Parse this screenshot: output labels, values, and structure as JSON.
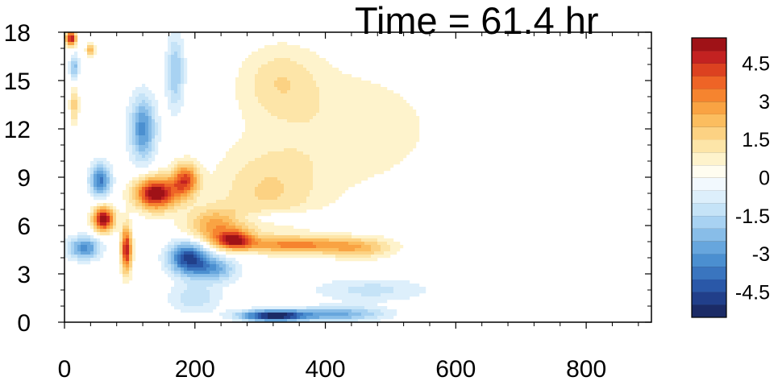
{
  "chart_data": {
    "type": "heatmap",
    "title": "Time = 61.4 hr",
    "xlabel": "",
    "ylabel": "",
    "xlim": [
      0,
      900
    ],
    "ylim": [
      0,
      18
    ],
    "x_ticks": [
      0,
      200,
      400,
      600,
      800
    ],
    "x_tick_labels": [
      "0",
      "200",
      "400",
      "600",
      "800"
    ],
    "y_ticks": [
      0,
      3,
      6,
      9,
      12,
      15,
      18
    ],
    "y_tick_labels": [
      "0",
      "3",
      "6",
      "9",
      "12",
      "15",
      "18"
    ],
    "colorbar": {
      "levels": [
        -5.5,
        -5,
        -4.5,
        -4,
        -3.5,
        -3,
        -2.5,
        -2,
        -1.5,
        -1,
        -0.5,
        0,
        0.5,
        1,
        1.5,
        2,
        2.5,
        3,
        3.5,
        4,
        4.5,
        5,
        5.5
      ],
      "labels": [
        "-4.5",
        "-3",
        "-1.5",
        "0",
        "1.5",
        "3",
        "4.5"
      ],
      "label_values": [
        -4.5,
        -3,
        -1.5,
        0,
        1.5,
        3,
        4.5
      ],
      "colors": [
        "#1b2b66",
        "#213f8a",
        "#2a58a8",
        "#3a75bf",
        "#4b8fd0",
        "#67a6dd",
        "#88bde8",
        "#a8d2f2",
        "#c5e3f7",
        "#ddeffb",
        "#f2f9fe",
        "#fffdf0",
        "#fef3cc",
        "#fde5a8",
        "#fcd283",
        "#fbbd5f",
        "#f9a343",
        "#f6842f",
        "#ee6426",
        "#dc4120",
        "#c32221",
        "#9f1217"
      ]
    },
    "features": [
      {
        "x": 10,
        "y": 17.6,
        "value": 5.2,
        "sx": 8,
        "sy": 0.45
      },
      {
        "x": 40,
        "y": 16.9,
        "value": 2.8,
        "sx": 6,
        "sy": 0.35
      },
      {
        "x": 15,
        "y": 13.5,
        "value": 1.8,
        "sx": 7,
        "sy": 1.2
      },
      {
        "x": 60,
        "y": 6.4,
        "value": 5.6,
        "sx": 16,
        "sy": 0.75
      },
      {
        "x": 95,
        "y": 4.5,
        "value": 5.0,
        "sx": 8,
        "sy": 1.4
      },
      {
        "x": 140,
        "y": 8.0,
        "value": 5.6,
        "sx": 32,
        "sy": 1.0
      },
      {
        "x": 185,
        "y": 8.8,
        "value": 4.0,
        "sx": 20,
        "sy": 1.0
      },
      {
        "x": 230,
        "y": 6.0,
        "value": 2.6,
        "sx": 45,
        "sy": 1.1
      },
      {
        "x": 260,
        "y": 5.1,
        "value": 4.2,
        "sx": 28,
        "sy": 0.55
      },
      {
        "x": 350,
        "y": 4.8,
        "value": 3.0,
        "sx": 80,
        "sy": 0.5
      },
      {
        "x": 450,
        "y": 4.6,
        "value": 2.0,
        "sx": 55,
        "sy": 0.65
      },
      {
        "x": 310,
        "y": 8.0,
        "value": 1.4,
        "sx": 80,
        "sy": 2.6
      },
      {
        "x": 430,
        "y": 12.0,
        "value": 0.9,
        "sx": 150,
        "sy": 4.0
      },
      {
        "x": 330,
        "y": 15.0,
        "value": 1.2,
        "sx": 60,
        "sy": 2.2
      },
      {
        "x": 120,
        "y": 12.0,
        "value": -3.2,
        "sx": 20,
        "sy": 2.0
      },
      {
        "x": 170,
        "y": 15.5,
        "value": -2.0,
        "sx": 14,
        "sy": 2.4
      },
      {
        "x": 15,
        "y": 15.8,
        "value": -2.3,
        "sx": 7,
        "sy": 0.8
      },
      {
        "x": 55,
        "y": 8.8,
        "value": -3.6,
        "sx": 16,
        "sy": 1.0
      },
      {
        "x": 30,
        "y": 4.6,
        "value": -3.3,
        "sx": 24,
        "sy": 0.7
      },
      {
        "x": 190,
        "y": 4.0,
        "value": -4.6,
        "sx": 30,
        "sy": 1.0
      },
      {
        "x": 230,
        "y": 3.3,
        "value": -2.6,
        "sx": 35,
        "sy": 0.8
      },
      {
        "x": 320,
        "y": 0.4,
        "value": -5.4,
        "sx": 50,
        "sy": 0.35
      },
      {
        "x": 420,
        "y": 0.5,
        "value": -2.6,
        "sx": 70,
        "sy": 0.45
      },
      {
        "x": 470,
        "y": 2.0,
        "value": -1.2,
        "sx": 90,
        "sy": 0.75
      },
      {
        "x": 330,
        "y": 6.5,
        "value": -0.9,
        "sx": 80,
        "sy": 0.45
      },
      {
        "x": 200,
        "y": 1.5,
        "value": -1.4,
        "sx": 40,
        "sy": 0.9
      }
    ]
  }
}
